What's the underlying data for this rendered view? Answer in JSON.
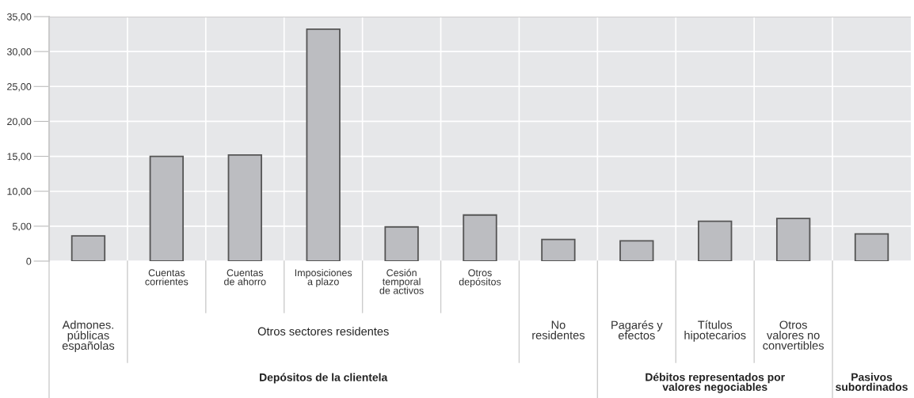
{
  "chart_data": {
    "type": "bar",
    "categories": [
      "Admones.\npúblicas\nespañolas",
      "Cuentas\ncorrientes",
      "Cuentas\nde ahorro",
      "Imposiciones\na plazo",
      "Cesión\ntemporal\nde activos",
      "Otros\ndepósitos",
      "No\nresidentes",
      "Pagarés y\nefectos",
      "Títulos\nhipotecarios",
      "Otros\nvalores no\nconvertibles",
      null
    ],
    "values": [
      3.6,
      15.0,
      15.2,
      33.2,
      4.9,
      6.6,
      3.1,
      2.9,
      5.7,
      6.1,
      3.9
    ],
    "color": "#bcbdc1",
    "ylim": [
      0,
      35
    ],
    "yticks": [
      {
        "value": 0,
        "label": "0"
      },
      {
        "value": 5,
        "label": "5,00"
      },
      {
        "value": 10,
        "label": "10,00"
      },
      {
        "value": 15,
        "label": "15,00"
      },
      {
        "value": 20,
        "label": "20,00"
      },
      {
        "value": 25,
        "label": "25,00"
      },
      {
        "value": 30,
        "label": "30,00"
      },
      {
        "value": 35,
        "label": "35,00"
      }
    ],
    "grid": true,
    "annotations": [
      "Otros sectores residentes",
      "Depósitos de la clientela",
      "Débitos representados por\nvalores negociables",
      "Pasivos\nsubordinados"
    ]
  }
}
